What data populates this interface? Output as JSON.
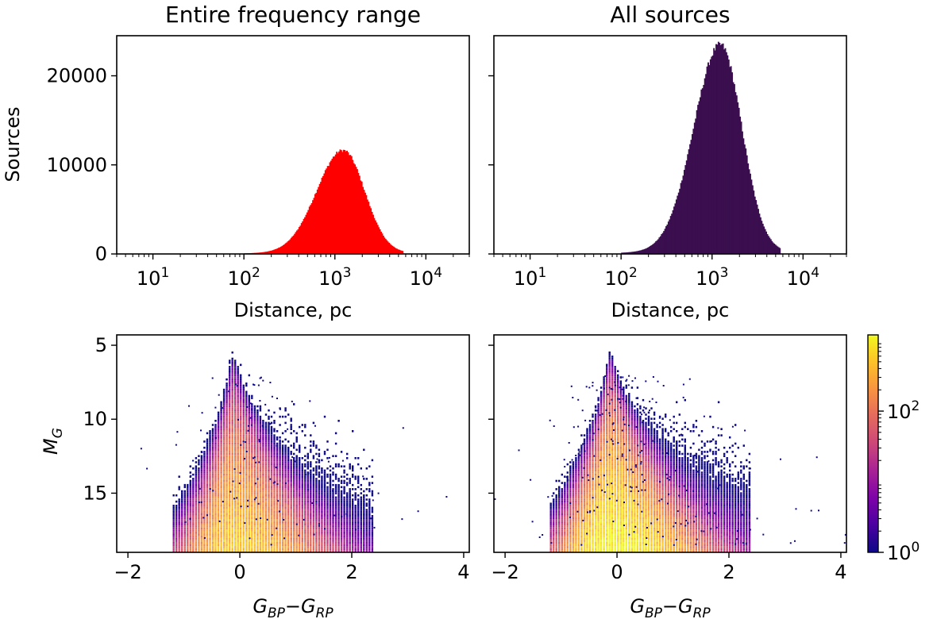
{
  "figure": {
    "panels": {
      "hist_left_title": "Entire frequency range",
      "hist_right_title": "All sources"
    }
  },
  "chart_data": [
    {
      "type": "bar",
      "panel": "top-left",
      "title": "Entire frequency range",
      "xlabel": "Distance, pc",
      "ylabel": "Sources",
      "xscale": "log",
      "xlim": [
        4,
        30000
      ],
      "ylim": [
        0,
        24500
      ],
      "xticks": [
        10,
        100,
        1000,
        10000
      ],
      "xtick_labels": [
        {
          "base": "10",
          "exp": "1"
        },
        {
          "base": "10",
          "exp": "2"
        },
        {
          "base": "10",
          "exp": "3"
        },
        {
          "base": "10",
          "exp": "4"
        }
      ],
      "yticks": [
        0,
        10000,
        20000
      ],
      "ytick_labels": [
        "0",
        "10000",
        "20000"
      ],
      "color": "#ff0000",
      "distribution": {
        "log10_center": 3.09,
        "log10_sigma": 0.26,
        "tail_sigma": 0.42,
        "peak": 11500,
        "bins": 140
      }
    },
    {
      "type": "bar",
      "panel": "top-right",
      "title": "All sources",
      "xlabel": "Distance, pc",
      "ylabel": "",
      "xscale": "log",
      "xlim": [
        4,
        30000
      ],
      "ylim": [
        0,
        24500
      ],
      "xticks": [
        10,
        100,
        1000,
        10000
      ],
      "xtick_labels": [
        {
          "base": "10",
          "exp": "1"
        },
        {
          "base": "10",
          "exp": "2"
        },
        {
          "base": "10",
          "exp": "3"
        },
        {
          "base": "10",
          "exp": "4"
        }
      ],
      "yticks": [
        0,
        10000,
        20000
      ],
      "ytick_labels": [],
      "color": "#3b0f4f",
      "distribution": {
        "log10_center": 3.09,
        "log10_sigma": 0.26,
        "tail_sigma": 0.42,
        "peak": 23200,
        "bins": 140
      }
    },
    {
      "type": "heatmap",
      "panel": "bottom-left",
      "xlabel": {
        "main": "G",
        "sub1": "BP",
        "minus": "−",
        "main2": "G",
        "sub2": "RP"
      },
      "ylabel": {
        "main": "M",
        "sub": "G"
      },
      "xlim": [
        -2.2,
        4.1
      ],
      "ylim": [
        19,
        4.3
      ],
      "yinverted": true,
      "xticks": [
        -2,
        0,
        2,
        4
      ],
      "xtick_labels": [
        "−2",
        "0",
        "2",
        "4"
      ],
      "yticks": [
        5,
        10,
        15
      ],
      "ytick_labels": [
        "5",
        "10",
        "15"
      ],
      "density": {
        "ridge_color": -0.15,
        "peak_count": 600,
        "sparse_points": 140
      }
    },
    {
      "type": "heatmap",
      "panel": "bottom-right",
      "xlabel": {
        "main": "G",
        "sub1": "BP",
        "minus": "−",
        "main2": "G",
        "sub2": "RP"
      },
      "ylabel": null,
      "xlim": [
        -2.2,
        4.1
      ],
      "ylim": [
        19,
        4.3
      ],
      "yinverted": true,
      "xticks": [
        -2,
        0,
        2,
        4
      ],
      "xtick_labels": [
        "−2",
        "0",
        "2",
        "4"
      ],
      "yticks": [
        5,
        10,
        15
      ],
      "ytick_labels": [],
      "density": {
        "ridge_color": -0.15,
        "peak_count": 1200,
        "sparse_points": 260
      }
    }
  ],
  "colorbar": {
    "scale": "log",
    "colormap": "plasma",
    "ticks": [
      {
        "base": "10",
        "exp": "0",
        "value": 1
      },
      {
        "base": "10",
        "exp": "2",
        "value": 100
      }
    ],
    "range": [
      1,
      1200
    ]
  }
}
